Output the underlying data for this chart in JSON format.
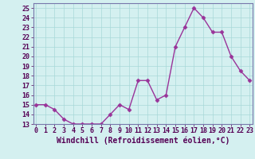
{
  "x": [
    0,
    1,
    2,
    3,
    4,
    5,
    6,
    7,
    8,
    9,
    10,
    11,
    12,
    13,
    14,
    15,
    16,
    17,
    18,
    19,
    20,
    21,
    22,
    23
  ],
  "y": [
    15,
    15,
    14.5,
    13.5,
    13.0,
    13.0,
    13.0,
    13.0,
    14.0,
    15.0,
    14.5,
    17.5,
    17.5,
    15.5,
    16.0,
    21.0,
    23.0,
    25.0,
    24.0,
    22.5,
    22.5,
    20.0,
    18.5,
    17.5
  ],
  "line_color": "#993399",
  "marker": "D",
  "marker_size": 2.5,
  "bg_color": "#d4f0f0",
  "grid_color": "#a8d8d8",
  "xlabel": "Windchill (Refroidissement éolien,°C)",
  "xlabel_fontsize": 7,
  "tick_fontsize": 6,
  "ylim": [
    13,
    25.5
  ],
  "yticks": [
    13,
    14,
    15,
    16,
    17,
    18,
    19,
    20,
    21,
    22,
    23,
    24,
    25
  ],
  "xticks": [
    0,
    1,
    2,
    3,
    4,
    5,
    6,
    7,
    8,
    9,
    10,
    11,
    12,
    13,
    14,
    15,
    16,
    17,
    18,
    19,
    20,
    21,
    22,
    23
  ],
  "xlim": [
    -0.3,
    23.3
  ],
  "spine_color": "#7777aa",
  "text_color": "#550055",
  "linewidth": 1.0
}
